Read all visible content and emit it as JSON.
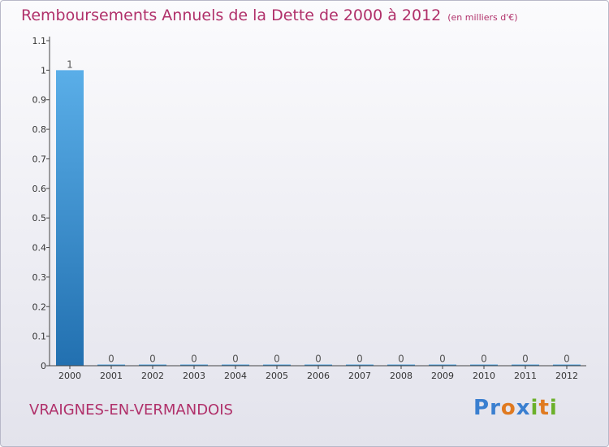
{
  "chart_data": {
    "type": "bar",
    "title": "Remboursements Annuels de la Dette de 2000 à 2012",
    "unit_label": "(en milliers d'€)",
    "categories": [
      "2000",
      "2001",
      "2002",
      "2003",
      "2004",
      "2005",
      "2006",
      "2007",
      "2008",
      "2009",
      "2010",
      "2011",
      "2012"
    ],
    "values": [
      1,
      0,
      0,
      0,
      0,
      0,
      0,
      0,
      0,
      0,
      0,
      0,
      0
    ],
    "value_labels": [
      "1",
      "0",
      "0",
      "0",
      "0",
      "0",
      "0",
      "0",
      "0",
      "0",
      "0",
      "0",
      "0"
    ],
    "y_ticks": [
      0,
      0.1,
      0.2,
      0.3,
      0.4,
      0.5,
      0.6,
      0.7,
      0.8,
      0.9,
      1,
      1.1
    ],
    "y_tick_labels": [
      "0",
      "0.1",
      "0.2",
      "0.3",
      "0.4",
      "0.5",
      "0.6",
      "0.7",
      "0.8",
      "0.9",
      "1",
      "1.1"
    ],
    "ylim": [
      0,
      1.1
    ],
    "xlabel": "",
    "ylabel": "",
    "colors": {
      "bar_light": "#5aaee8",
      "bar_dark": "#2270b0",
      "axis": "#444444",
      "title": "#b0306a"
    }
  },
  "commune": "VRAIGNES-EN-VERMANDOIS",
  "logo": {
    "text": "Proxiti",
    "letters": [
      "P",
      "r",
      "o",
      "x",
      "i",
      "t",
      "i"
    ],
    "letter_colors": [
      "#3a7fd0",
      "#3a7fd0",
      "#e07a20",
      "#3a7fd0",
      "#6bb02a",
      "#e07a20",
      "#6bb02a"
    ]
  }
}
